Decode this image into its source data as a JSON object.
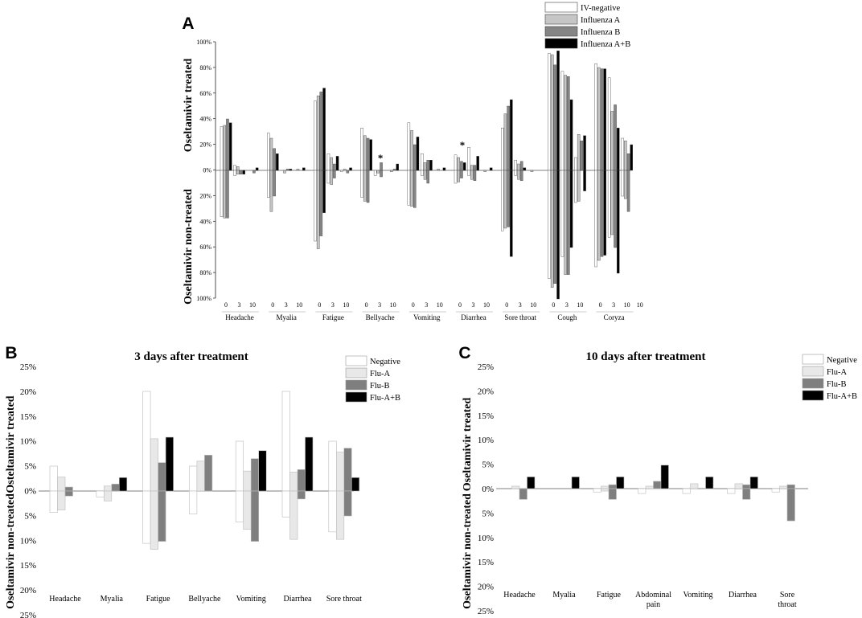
{
  "chart_data": [
    {
      "panel": "A",
      "type": "bar",
      "title": "",
      "ylabel_top": "Oseltamivir treated",
      "ylabel_bottom": "Oseltamivir non-treated",
      "ylim": [
        -100,
        100
      ],
      "yticks": [
        "100%",
        "80%",
        "60%",
        "40%",
        "20%",
        "0%",
        "20%",
        "40%",
        "60%",
        "80%",
        "100%"
      ],
      "day_labels": [
        "0",
        "3",
        "10"
      ],
      "categories": [
        "Headache",
        "Myalia",
        "Fatigue",
        "Bellyache",
        "Vomiting",
        "Diarrhea",
        "Sore throat",
        "Cough",
        "Coryza"
      ],
      "legend_position": "top-right",
      "series": [
        {
          "name": "IV-negative",
          "color": "#ffffff",
          "treated": [
            [
              34,
              4,
              0
            ],
            [
              29,
              0,
              0
            ],
            [
              54,
              13,
              0
            ],
            [
              33,
              0,
              0
            ],
            [
              37,
              13,
              0
            ],
            [
              12,
              18,
              0
            ],
            [
              33,
              8,
              0
            ],
            [
              91,
              77,
              10
            ],
            [
              83,
              72,
              25
            ]
          ],
          "nontreated": [
            [
              36,
              4,
              0
            ],
            [
              21,
              0,
              0
            ],
            [
              55,
              10,
              1
            ],
            [
              21,
              4,
              0
            ],
            [
              27,
              4,
              0
            ],
            [
              10,
              4,
              0
            ],
            [
              47,
              4,
              0
            ],
            [
              84,
              67,
              25
            ],
            [
              75,
              52,
              20
            ]
          ]
        },
        {
          "name": "Influenza A",
          "color": "#c6c6c6",
          "treated": [
            [
              35,
              3,
              0
            ],
            [
              25,
              0,
              1
            ],
            [
              58,
              10,
              1
            ],
            [
              27,
              0,
              0
            ],
            [
              31,
              6,
              1
            ],
            [
              10,
              4,
              0
            ],
            [
              44,
              5,
              0
            ],
            [
              90,
              74,
              28
            ],
            [
              80,
              46,
              23
            ]
          ],
          "nontreated": [
            [
              37,
              3,
              0
            ],
            [
              32,
              2,
              0
            ],
            [
              61,
              11,
              0
            ],
            [
              24,
              2,
              1
            ],
            [
              28,
              7,
              0
            ],
            [
              9,
              7,
              1
            ],
            [
              45,
              7,
              1
            ],
            [
              91,
              81,
              24
            ],
            [
              70,
              50,
              22
            ]
          ]
        },
        {
          "name": "Influenza B",
          "color": "#858585",
          "treated": [
            [
              40,
              0,
              0
            ],
            [
              17,
              1,
              0
            ],
            [
              61,
              5,
              0
            ],
            [
              25,
              6,
              1
            ],
            [
              20,
              8,
              0
            ],
            [
              7,
              4,
              0
            ],
            [
              50,
              7,
              0
            ],
            [
              82,
              73,
              23
            ],
            [
              79,
              51,
              13
            ]
          ],
          "nontreated": [
            [
              37,
              3,
              2
            ],
            [
              20,
              0,
              0
            ],
            [
              51,
              6,
              2
            ],
            [
              25,
              5,
              0
            ],
            [
              29,
              10,
              0
            ],
            [
              6,
              8,
              0
            ],
            [
              44,
              8,
              0
            ],
            [
              88,
              81,
              0
            ],
            [
              67,
              60,
              32
            ]
          ]
        },
        {
          "name": "Influenza A+B",
          "color": "#000000",
          "treated": [
            [
              37,
              0,
              2
            ],
            [
              13,
              1,
              2
            ],
            [
              64,
              11,
              2
            ],
            [
              24,
              0,
              5
            ],
            [
              26,
              8,
              2
            ],
            [
              6,
              11,
              2
            ],
            [
              55,
              2,
              0
            ],
            [
              93,
              55,
              27
            ],
            [
              79,
              33,
              20
            ]
          ],
          "nontreated": [
            [
              0,
              3,
              0
            ],
            [
              0,
              0,
              0
            ],
            [
              33,
              0,
              0
            ],
            [
              0,
              0,
              0
            ],
            [
              0,
              0,
              0
            ],
            [
              0,
              0,
              0
            ],
            [
              67,
              0,
              0
            ],
            [
              100,
              60,
              16
            ],
            [
              66,
              80,
              0
            ]
          ]
        }
      ],
      "annotations": [
        "*",
        "*"
      ]
    },
    {
      "panel": "B",
      "type": "bar",
      "title": "3 days after treatment",
      "ylabel_top": "Osteltamivir treated",
      "ylabel_bottom": "Oseltamivir non-treated",
      "ylim": [
        -25,
        25
      ],
      "yticks": [
        "25%",
        "20%",
        "15%",
        "10%",
        "5%",
        "0%",
        "5%",
        "10%",
        "15%",
        "20%",
        "25%"
      ],
      "categories": [
        "Headache",
        "Myalia",
        "Fatigue",
        "Bellyache",
        "Vomiting",
        "Diarrhea",
        "Sore throat"
      ],
      "legend_position": "top-right",
      "series": [
        {
          "name": "Negative",
          "color": "#ffffff",
          "treated": [
            5,
            0,
            20,
            5,
            10,
            20,
            10
          ],
          "nontreated": [
            4.3,
            1.2,
            10.5,
            4.6,
            6.2,
            5.2,
            8.2
          ]
        },
        {
          "name": "Flu-A",
          "color": "#e8e8e8",
          "treated": [
            2.8,
            1.0,
            10.5,
            6.0,
            4.0,
            3.8,
            7.8
          ],
          "nontreated": [
            3.8,
            2.0,
            11.7,
            0,
            7.7,
            9.7,
            9.7
          ]
        },
        {
          "name": "Flu-B",
          "color": "#7f7f7f",
          "treated": [
            0.8,
            1.4,
            5.7,
            7.2,
            6.5,
            4.3,
            8.6
          ],
          "nontreated": [
            1.0,
            0,
            10.1,
            0,
            10.1,
            1.6,
            5.0
          ]
        },
        {
          "name": "Flu-A+B",
          "color": "#000000",
          "treated": [
            0,
            2.7,
            10.8,
            0,
            8.1,
            10.8,
            2.7
          ],
          "nontreated": [
            0,
            0,
            0,
            0,
            0,
            0,
            0
          ]
        }
      ]
    },
    {
      "panel": "C",
      "type": "bar",
      "title": "10 days after treatment",
      "ylabel_top": "Oseltamivir treated",
      "ylabel_bottom": "Oseltamivir non-treated",
      "ylim": [
        -25,
        25
      ],
      "yticks": [
        "25%",
        "20%",
        "15%",
        "10%",
        "5%",
        "0%",
        "5%",
        "10%",
        "15%",
        "20%",
        "25%"
      ],
      "categories": [
        "Headache",
        "Myalia",
        "Fatigue",
        "Abdominal pain",
        "Vomiting",
        "Diarrhea",
        "Sore throat"
      ],
      "legend_position": "top-right",
      "series": [
        {
          "name": "Negative",
          "color": "#ffffff",
          "treated": [
            0,
            0,
            0,
            0,
            0,
            0,
            0
          ],
          "nontreated": [
            0,
            0,
            0.7,
            1.0,
            1.0,
            1.0,
            0.7
          ]
        },
        {
          "name": "Flu-A",
          "color": "#e8e8e8",
          "treated": [
            0.5,
            0,
            0.5,
            0.5,
            1.0,
            1.0,
            0.5
          ],
          "nontreated": [
            0,
            0,
            0.5,
            0,
            0,
            0,
            0
          ]
        },
        {
          "name": "Flu-B",
          "color": "#7f7f7f",
          "treated": [
            0,
            0,
            0.8,
            1.5,
            0,
            0.8,
            0.8
          ],
          "nontreated": [
            2.2,
            0,
            2.2,
            0,
            0,
            2.2,
            6.6
          ]
        },
        {
          "name": "Flu-A+B",
          "color": "#000000",
          "treated": [
            2.4,
            2.4,
            2.4,
            4.8,
            2.4,
            2.4,
            0
          ],
          "nontreated": [
            0,
            0,
            0,
            0,
            0,
            0,
            0
          ]
        }
      ]
    }
  ]
}
